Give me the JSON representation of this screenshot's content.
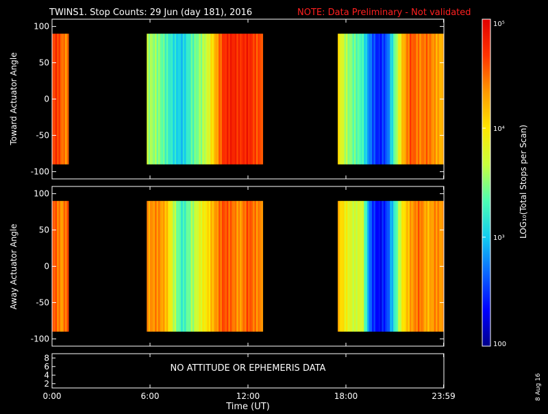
{
  "header": {
    "title": "TWINS1. Stop Counts: 29 Jun (day 181), 2016",
    "note": "NOTE: Data Preliminary - Not validated"
  },
  "colors": {
    "background": "#000000",
    "axes": "#ffffff",
    "note": "#ff2020"
  },
  "colorbar": {
    "label": "LOG₁₀(Total Stops per Scan)",
    "scale": "log",
    "range": [
      100,
      100000
    ],
    "tick_labels": [
      "100",
      "10³",
      "10⁴",
      "10⁵"
    ],
    "colormap": [
      "#00008a",
      "#0000ff",
      "#0a66ff",
      "#12ccf0",
      "#4dffb3",
      "#c8ff3d",
      "#ffe600",
      "#ff9900",
      "#ff3300",
      "#e10000"
    ]
  },
  "footer": {
    "xlabel": "Time (UT)",
    "date_stamp": "8 Aug 16"
  },
  "chart_data": [
    {
      "type": "heatmap",
      "panel": "toward",
      "ylabel": "Toward Actuator Angle",
      "xlim": [
        0,
        24
      ],
      "ylim": [
        -110,
        110
      ],
      "xticks": [
        {
          "value": 0,
          "label": "0:00"
        },
        {
          "value": 6,
          "label": "6:00"
        },
        {
          "value": 12,
          "label": "12:00"
        },
        {
          "value": 18,
          "label": "18:00"
        },
        {
          "value": 23.98,
          "label": "23:59"
        }
      ],
      "yticks": [
        100,
        50,
        0,
        -50,
        -100
      ],
      "angle_range": [
        -90,
        90
      ],
      "data_gaps_hours": [
        [
          1.0,
          5.8
        ],
        [
          12.9,
          17.5
        ]
      ],
      "log10_counts_by_time": [
        {
          "t": 0.0,
          "v": 4.6
        },
        {
          "t": 0.3,
          "v": 4.7
        },
        {
          "t": 0.6,
          "v": 4.5
        },
        {
          "t": 0.8,
          "v": 4.4
        },
        {
          "t": 5.8,
          "v": 3.6
        },
        {
          "t": 6.5,
          "v": 3.5
        },
        {
          "t": 7.0,
          "v": 3.3
        },
        {
          "t": 7.5,
          "v": 3.1
        },
        {
          "t": 8.0,
          "v": 3.0
        },
        {
          "t": 8.5,
          "v": 3.3
        },
        {
          "t": 9.0,
          "v": 3.5
        },
        {
          "t": 9.5,
          "v": 3.7
        },
        {
          "t": 10.0,
          "v": 4.2
        },
        {
          "t": 10.5,
          "v": 4.7
        },
        {
          "t": 11.0,
          "v": 4.8
        },
        {
          "t": 11.5,
          "v": 4.7
        },
        {
          "t": 12.0,
          "v": 4.8
        },
        {
          "t": 12.5,
          "v": 4.6
        },
        {
          "t": 17.5,
          "v": 4.0
        },
        {
          "t": 18.0,
          "v": 3.6
        },
        {
          "t": 18.5,
          "v": 3.4
        },
        {
          "t": 19.0,
          "v": 3.3
        },
        {
          "t": 19.5,
          "v": 2.7
        },
        {
          "t": 20.0,
          "v": 2.4
        },
        {
          "t": 20.5,
          "v": 2.6
        },
        {
          "t": 21.0,
          "v": 3.4
        },
        {
          "t": 21.5,
          "v": 4.2
        },
        {
          "t": 22.0,
          "v": 4.6
        },
        {
          "t": 22.5,
          "v": 4.4
        },
        {
          "t": 23.0,
          "v": 4.5
        },
        {
          "t": 23.5,
          "v": 4.3
        },
        {
          "t": 23.98,
          "v": 4.2
        }
      ]
    },
    {
      "type": "heatmap",
      "panel": "away",
      "ylabel": "Away Actuator Angle",
      "xlim": [
        0,
        24
      ],
      "ylim": [
        -110,
        110
      ],
      "xticks": [
        {
          "value": 0,
          "label": "0:00"
        },
        {
          "value": 6,
          "label": "6:00"
        },
        {
          "value": 12,
          "label": "12:00"
        },
        {
          "value": 18,
          "label": "18:00"
        },
        {
          "value": 23.98,
          "label": "23:59"
        }
      ],
      "yticks": [
        100,
        50,
        0,
        -50,
        -100
      ],
      "angle_range": [
        -90,
        90
      ],
      "data_gaps_hours": [
        [
          1.0,
          5.8
        ],
        [
          12.9,
          17.5
        ]
      ],
      "log10_counts_by_time": [
        {
          "t": 0.0,
          "v": 4.6
        },
        {
          "t": 0.3,
          "v": 4.5
        },
        {
          "t": 0.6,
          "v": 4.3
        },
        {
          "t": 0.8,
          "v": 4.5
        },
        {
          "t": 5.8,
          "v": 4.3
        },
        {
          "t": 6.5,
          "v": 4.4
        },
        {
          "t": 7.0,
          "v": 4.2
        },
        {
          "t": 7.5,
          "v": 3.6
        },
        {
          "t": 8.0,
          "v": 3.2
        },
        {
          "t": 8.5,
          "v": 3.5
        },
        {
          "t": 9.0,
          "v": 3.8
        },
        {
          "t": 9.5,
          "v": 4.0
        },
        {
          "t": 10.0,
          "v": 4.3
        },
        {
          "t": 10.5,
          "v": 4.6
        },
        {
          "t": 11.0,
          "v": 4.5
        },
        {
          "t": 11.5,
          "v": 4.3
        },
        {
          "t": 12.0,
          "v": 4.6
        },
        {
          "t": 12.5,
          "v": 4.4
        },
        {
          "t": 17.5,
          "v": 4.2
        },
        {
          "t": 18.0,
          "v": 3.9
        },
        {
          "t": 18.5,
          "v": 3.7
        },
        {
          "t": 19.0,
          "v": 3.8
        },
        {
          "t": 19.5,
          "v": 2.6
        },
        {
          "t": 20.0,
          "v": 2.3
        },
        {
          "t": 20.5,
          "v": 2.5
        },
        {
          "t": 21.0,
          "v": 3.2
        },
        {
          "t": 21.5,
          "v": 4.0
        },
        {
          "t": 22.0,
          "v": 4.3
        },
        {
          "t": 22.5,
          "v": 4.5
        },
        {
          "t": 23.0,
          "v": 4.2
        },
        {
          "t": 23.5,
          "v": 4.4
        },
        {
          "t": 23.98,
          "v": 4.3
        }
      ]
    },
    {
      "type": "line",
      "panel": "ephemeris",
      "annotation": "NO ATTITUDE OR EPHEMERIS DATA",
      "xlim": [
        0,
        24
      ],
      "yticks": [
        8,
        6,
        4,
        2
      ],
      "series": []
    }
  ]
}
